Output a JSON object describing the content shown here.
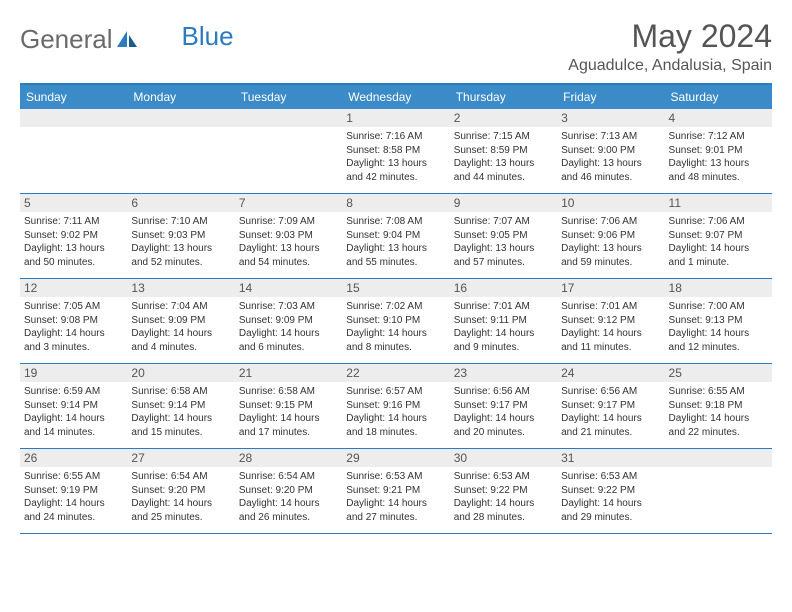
{
  "brand": {
    "part1": "General",
    "part2": "Blue"
  },
  "title": "May 2024",
  "location": "Aguadulce, Andalusia, Spain",
  "colors": {
    "header_bg": "#3b8bc9",
    "border": "#2b7bbf",
    "daynum_bg": "#ededed",
    "text": "#333333",
    "title_text": "#555555",
    "logo_gray": "#6a6a6a",
    "logo_blue": "#2b7bbf"
  },
  "day_names": [
    "Sunday",
    "Monday",
    "Tuesday",
    "Wednesday",
    "Thursday",
    "Friday",
    "Saturday"
  ],
  "weeks": [
    [
      {
        "num": "",
        "lines": []
      },
      {
        "num": "",
        "lines": []
      },
      {
        "num": "",
        "lines": []
      },
      {
        "num": "1",
        "lines": [
          "Sunrise: 7:16 AM",
          "Sunset: 8:58 PM",
          "Daylight: 13 hours",
          "and 42 minutes."
        ]
      },
      {
        "num": "2",
        "lines": [
          "Sunrise: 7:15 AM",
          "Sunset: 8:59 PM",
          "Daylight: 13 hours",
          "and 44 minutes."
        ]
      },
      {
        "num": "3",
        "lines": [
          "Sunrise: 7:13 AM",
          "Sunset: 9:00 PM",
          "Daylight: 13 hours",
          "and 46 minutes."
        ]
      },
      {
        "num": "4",
        "lines": [
          "Sunrise: 7:12 AM",
          "Sunset: 9:01 PM",
          "Daylight: 13 hours",
          "and 48 minutes."
        ]
      }
    ],
    [
      {
        "num": "5",
        "lines": [
          "Sunrise: 7:11 AM",
          "Sunset: 9:02 PM",
          "Daylight: 13 hours",
          "and 50 minutes."
        ]
      },
      {
        "num": "6",
        "lines": [
          "Sunrise: 7:10 AM",
          "Sunset: 9:03 PM",
          "Daylight: 13 hours",
          "and 52 minutes."
        ]
      },
      {
        "num": "7",
        "lines": [
          "Sunrise: 7:09 AM",
          "Sunset: 9:03 PM",
          "Daylight: 13 hours",
          "and 54 minutes."
        ]
      },
      {
        "num": "8",
        "lines": [
          "Sunrise: 7:08 AM",
          "Sunset: 9:04 PM",
          "Daylight: 13 hours",
          "and 55 minutes."
        ]
      },
      {
        "num": "9",
        "lines": [
          "Sunrise: 7:07 AM",
          "Sunset: 9:05 PM",
          "Daylight: 13 hours",
          "and 57 minutes."
        ]
      },
      {
        "num": "10",
        "lines": [
          "Sunrise: 7:06 AM",
          "Sunset: 9:06 PM",
          "Daylight: 13 hours",
          "and 59 minutes."
        ]
      },
      {
        "num": "11",
        "lines": [
          "Sunrise: 7:06 AM",
          "Sunset: 9:07 PM",
          "Daylight: 14 hours",
          "and 1 minute."
        ]
      }
    ],
    [
      {
        "num": "12",
        "lines": [
          "Sunrise: 7:05 AM",
          "Sunset: 9:08 PM",
          "Daylight: 14 hours",
          "and 3 minutes."
        ]
      },
      {
        "num": "13",
        "lines": [
          "Sunrise: 7:04 AM",
          "Sunset: 9:09 PM",
          "Daylight: 14 hours",
          "and 4 minutes."
        ]
      },
      {
        "num": "14",
        "lines": [
          "Sunrise: 7:03 AM",
          "Sunset: 9:09 PM",
          "Daylight: 14 hours",
          "and 6 minutes."
        ]
      },
      {
        "num": "15",
        "lines": [
          "Sunrise: 7:02 AM",
          "Sunset: 9:10 PM",
          "Daylight: 14 hours",
          "and 8 minutes."
        ]
      },
      {
        "num": "16",
        "lines": [
          "Sunrise: 7:01 AM",
          "Sunset: 9:11 PM",
          "Daylight: 14 hours",
          "and 9 minutes."
        ]
      },
      {
        "num": "17",
        "lines": [
          "Sunrise: 7:01 AM",
          "Sunset: 9:12 PM",
          "Daylight: 14 hours",
          "and 11 minutes."
        ]
      },
      {
        "num": "18",
        "lines": [
          "Sunrise: 7:00 AM",
          "Sunset: 9:13 PM",
          "Daylight: 14 hours",
          "and 12 minutes."
        ]
      }
    ],
    [
      {
        "num": "19",
        "lines": [
          "Sunrise: 6:59 AM",
          "Sunset: 9:14 PM",
          "Daylight: 14 hours",
          "and 14 minutes."
        ]
      },
      {
        "num": "20",
        "lines": [
          "Sunrise: 6:58 AM",
          "Sunset: 9:14 PM",
          "Daylight: 14 hours",
          "and 15 minutes."
        ]
      },
      {
        "num": "21",
        "lines": [
          "Sunrise: 6:58 AM",
          "Sunset: 9:15 PM",
          "Daylight: 14 hours",
          "and 17 minutes."
        ]
      },
      {
        "num": "22",
        "lines": [
          "Sunrise: 6:57 AM",
          "Sunset: 9:16 PM",
          "Daylight: 14 hours",
          "and 18 minutes."
        ]
      },
      {
        "num": "23",
        "lines": [
          "Sunrise: 6:56 AM",
          "Sunset: 9:17 PM",
          "Daylight: 14 hours",
          "and 20 minutes."
        ]
      },
      {
        "num": "24",
        "lines": [
          "Sunrise: 6:56 AM",
          "Sunset: 9:17 PM",
          "Daylight: 14 hours",
          "and 21 minutes."
        ]
      },
      {
        "num": "25",
        "lines": [
          "Sunrise: 6:55 AM",
          "Sunset: 9:18 PM",
          "Daylight: 14 hours",
          "and 22 minutes."
        ]
      }
    ],
    [
      {
        "num": "26",
        "lines": [
          "Sunrise: 6:55 AM",
          "Sunset: 9:19 PM",
          "Daylight: 14 hours",
          "and 24 minutes."
        ]
      },
      {
        "num": "27",
        "lines": [
          "Sunrise: 6:54 AM",
          "Sunset: 9:20 PM",
          "Daylight: 14 hours",
          "and 25 minutes."
        ]
      },
      {
        "num": "28",
        "lines": [
          "Sunrise: 6:54 AM",
          "Sunset: 9:20 PM",
          "Daylight: 14 hours",
          "and 26 minutes."
        ]
      },
      {
        "num": "29",
        "lines": [
          "Sunrise: 6:53 AM",
          "Sunset: 9:21 PM",
          "Daylight: 14 hours",
          "and 27 minutes."
        ]
      },
      {
        "num": "30",
        "lines": [
          "Sunrise: 6:53 AM",
          "Sunset: 9:22 PM",
          "Daylight: 14 hours",
          "and 28 minutes."
        ]
      },
      {
        "num": "31",
        "lines": [
          "Sunrise: 6:53 AM",
          "Sunset: 9:22 PM",
          "Daylight: 14 hours",
          "and 29 minutes."
        ]
      },
      {
        "num": "",
        "lines": []
      }
    ]
  ]
}
